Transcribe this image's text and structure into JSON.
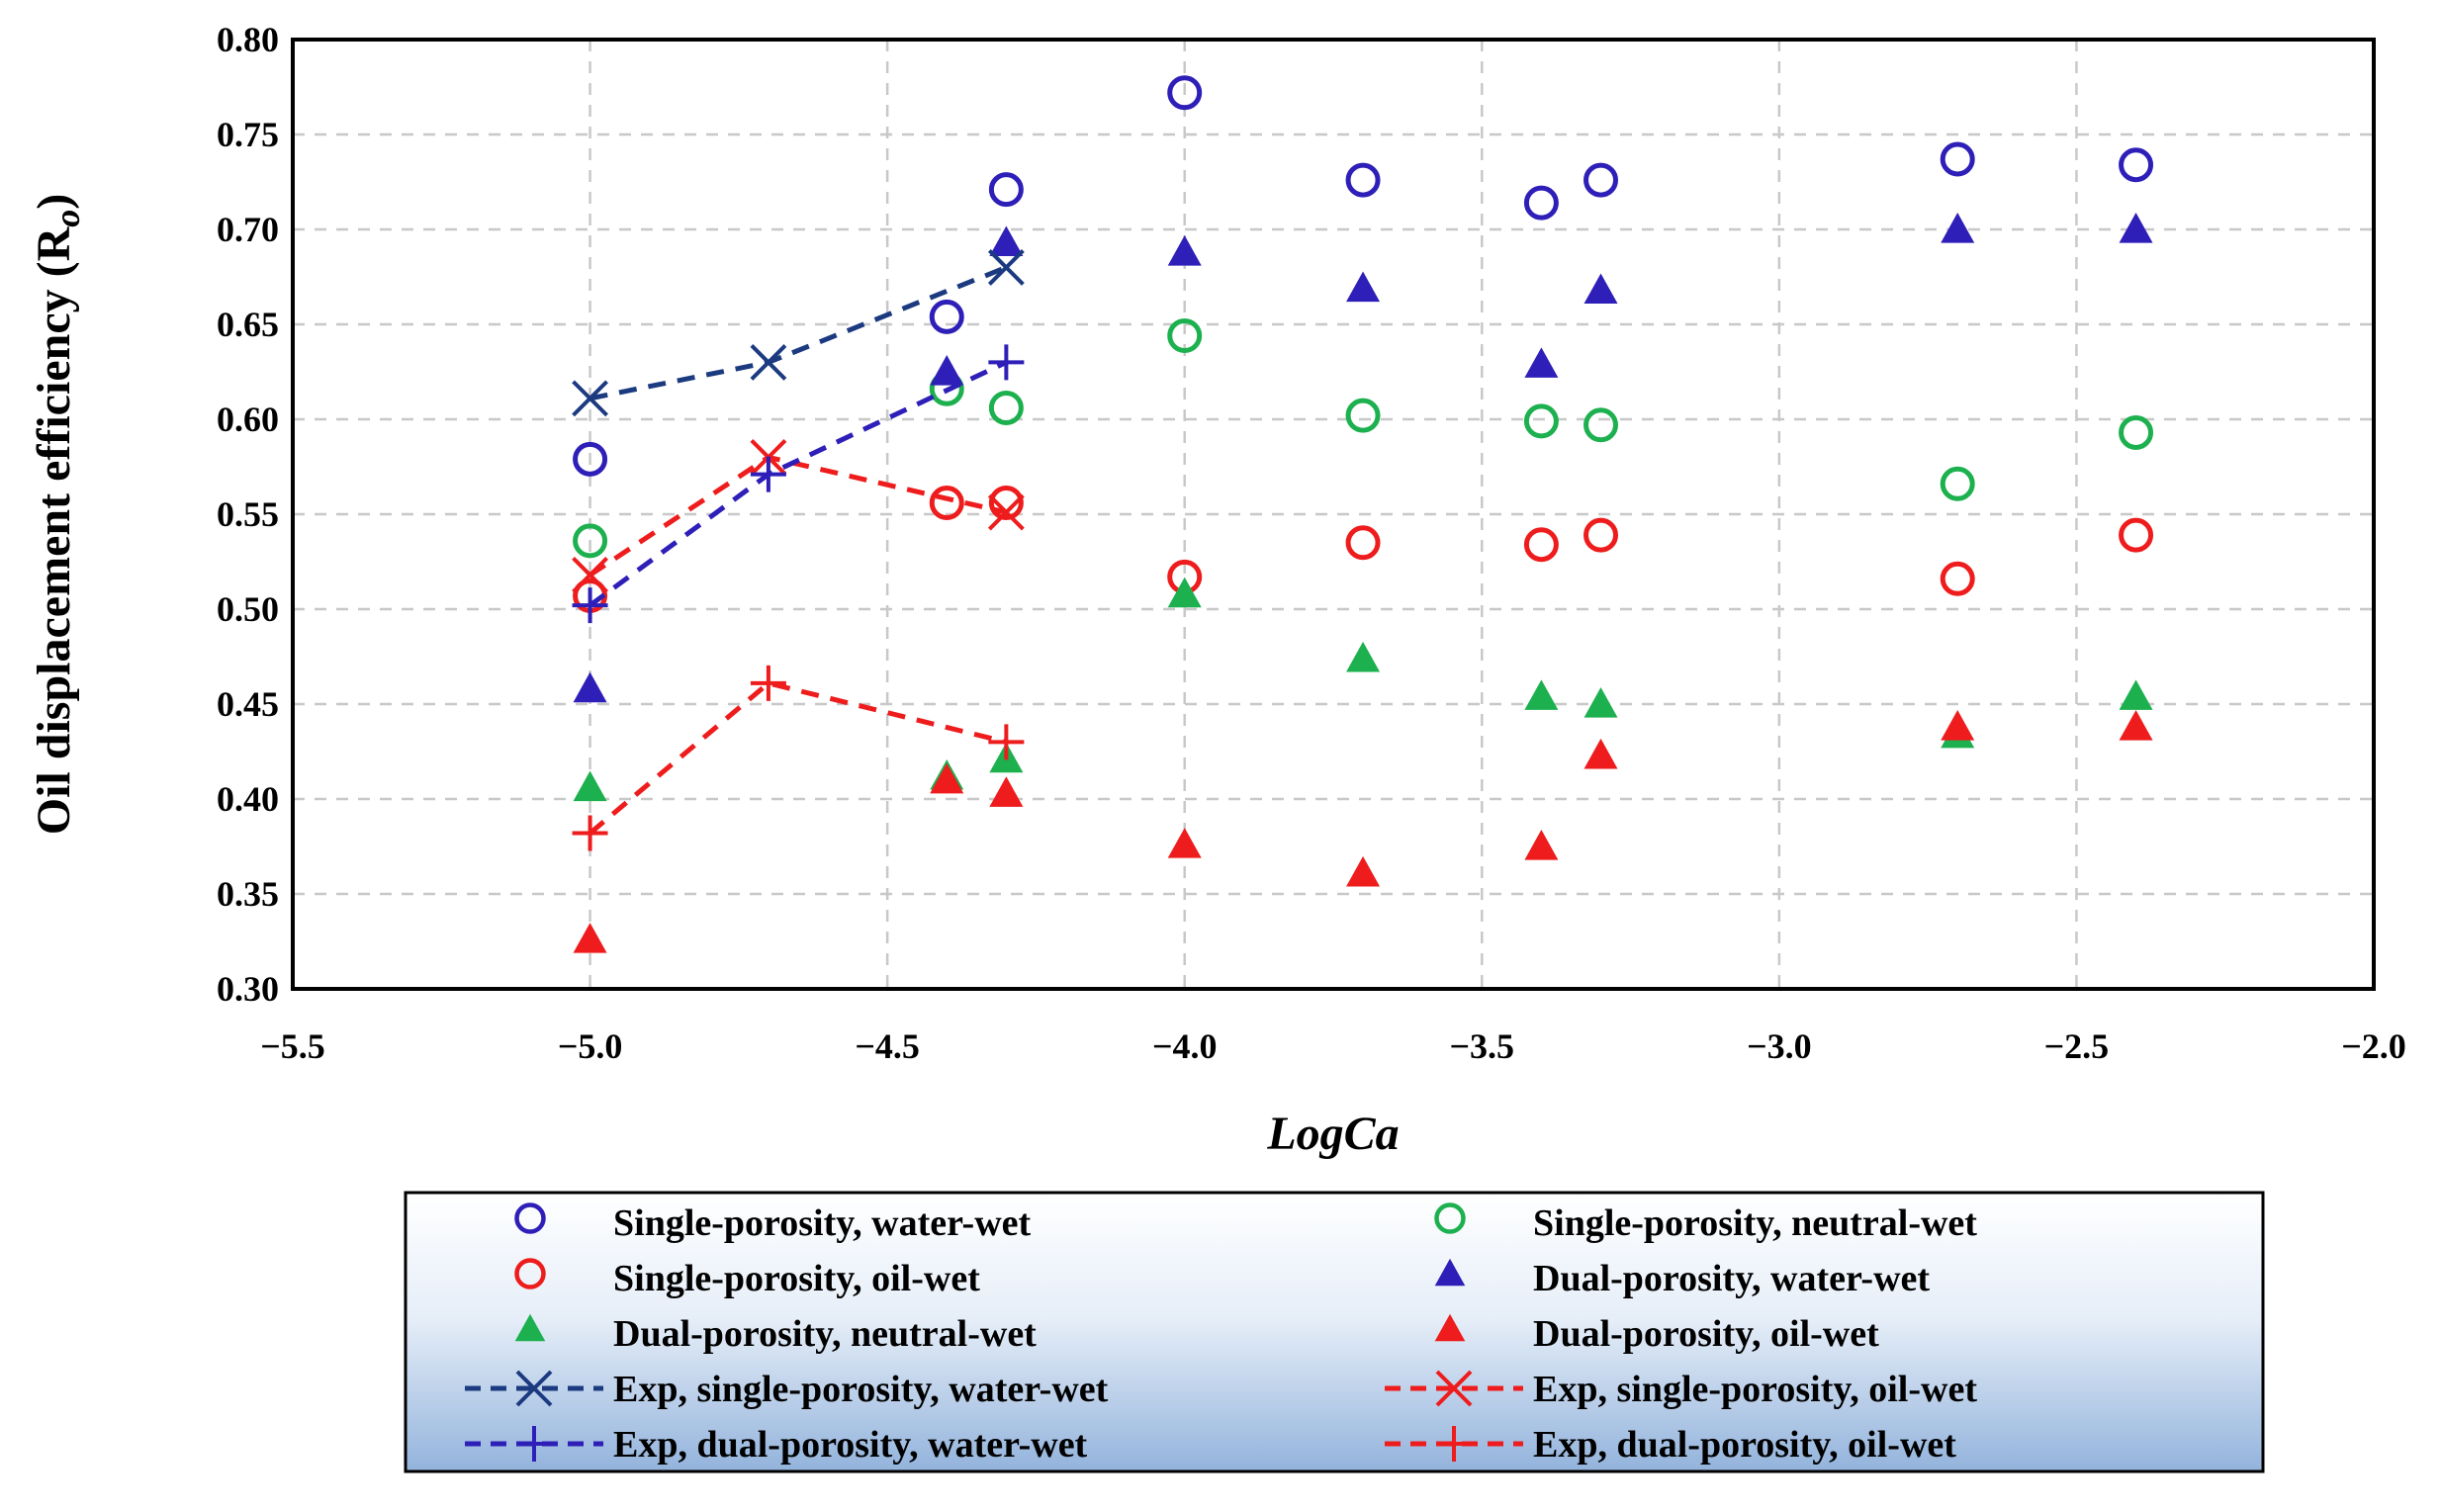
{
  "chart_data": {
    "type": "scatter",
    "title": "",
    "xlabel": "LogCa",
    "ylabel": "Oil displacement efficiency (R",
    "ylabel_subscript": "o",
    "ylabel_close": ")",
    "xlim": [
      -5.5,
      -2.0
    ],
    "ylim": [
      0.3,
      0.8
    ],
    "x_ticks": [
      -5.5,
      -5.0,
      -4.5,
      -4.0,
      -3.5,
      -3.0,
      -2.5,
      -2.0
    ],
    "x_tick_labels": [
      "−5.5",
      "−5.0",
      "−4.5",
      "−4.0",
      "−3.5",
      "−3.0",
      "−2.5",
      "−2.0"
    ],
    "y_ticks": [
      0.3,
      0.35,
      0.4,
      0.45,
      0.5,
      0.55,
      0.6,
      0.65,
      0.7,
      0.75,
      0.8
    ],
    "y_tick_labels": [
      "0.30",
      "0.35",
      "0.40",
      "0.45",
      "0.50",
      "0.55",
      "0.60",
      "0.65",
      "0.70",
      "0.75",
      "0.80"
    ],
    "grid": true,
    "legend_position": "bottom",
    "series": [
      {
        "name": "Single-porosity, water-wet",
        "marker": "circle",
        "color": "#2E1FB8",
        "line": false,
        "x": [
          -5.0,
          -4.4,
          -4.3,
          -4.0,
          -3.7,
          -3.4,
          -3.3,
          -2.7,
          -2.4
        ],
        "y": [
          0.579,
          0.654,
          0.721,
          0.772,
          0.726,
          0.714,
          0.726,
          0.737,
          0.734
        ]
      },
      {
        "name": "Single-porosity, neutral-wet",
        "marker": "circle",
        "color": "#1DB04F",
        "line": false,
        "x": [
          -5.0,
          -4.4,
          -4.3,
          -4.0,
          -3.7,
          -3.4,
          -3.3,
          -2.7,
          -2.4
        ],
        "y": [
          0.536,
          0.616,
          0.606,
          0.644,
          0.602,
          0.599,
          0.597,
          0.566,
          0.593
        ]
      },
      {
        "name": "Single-porosity, oil-wet",
        "marker": "circle",
        "color": "#EE1C1C",
        "line": false,
        "x": [
          -5.0,
          -4.4,
          -4.3,
          -4.0,
          -3.7,
          -3.4,
          -3.3,
          -2.7,
          -2.4
        ],
        "y": [
          0.507,
          0.556,
          0.556,
          0.517,
          0.535,
          0.534,
          0.539,
          0.516,
          0.539
        ]
      },
      {
        "name": "Dual-porosity, water-wet",
        "marker": "triangle",
        "color": "#2E1FB8",
        "line": false,
        "x": [
          -5.0,
          -4.4,
          -4.3,
          -4.0,
          -3.7,
          -3.4,
          -3.3,
          -2.7,
          -2.4
        ],
        "y": [
          0.458,
          0.625,
          0.693,
          0.688,
          0.669,
          0.629,
          0.668,
          0.7,
          0.7
        ]
      },
      {
        "name": "Dual-porosity, neutral-wet",
        "marker": "triangle",
        "color": "#1DB04F",
        "line": false,
        "x": [
          -5.0,
          -4.4,
          -4.3,
          -4.0,
          -3.7,
          -3.4,
          -3.3,
          -2.7,
          -2.4
        ],
        "y": [
          0.406,
          0.412,
          0.421,
          0.508,
          0.474,
          0.454,
          0.45,
          0.434,
          0.454
        ]
      },
      {
        "name": "Dual-porosity, oil-wet",
        "marker": "triangle",
        "color": "#EE1C1C",
        "line": false,
        "x": [
          -5.0,
          -4.4,
          -4.3,
          -4.0,
          -3.7,
          -3.4,
          -3.3,
          -2.7,
          -2.4
        ],
        "y": [
          0.326,
          0.41,
          0.403,
          0.376,
          0.361,
          0.375,
          0.423,
          0.438,
          0.438
        ]
      },
      {
        "name": "Exp, single-porosity, water-wet",
        "marker": "x",
        "color": "#1B3A80",
        "line": true,
        "x": [
          -5.0,
          -4.7,
          -4.3
        ],
        "y": [
          0.611,
          0.63,
          0.68
        ]
      },
      {
        "name": "Exp, single-porosity, oil-wet",
        "marker": "x",
        "color": "#EE1C1C",
        "line": true,
        "x": [
          -5.0,
          -4.7,
          -4.3
        ],
        "y": [
          0.518,
          0.58,
          0.551
        ]
      },
      {
        "name": "Exp, dual-porosity, water-wet",
        "marker": "plus",
        "color": "#2E1FB8",
        "line": true,
        "x": [
          -5.0,
          -4.7,
          -4.3
        ],
        "y": [
          0.502,
          0.571,
          0.63
        ]
      },
      {
        "name": "Exp, dual-porosity, oil-wet",
        "marker": "plus",
        "color": "#EE1C1C",
        "line": true,
        "x": [
          -5.0,
          -4.7,
          -4.3
        ],
        "y": [
          0.382,
          0.461,
          0.43
        ]
      }
    ],
    "legend_order": [
      0,
      1,
      2,
      3,
      4,
      5,
      6,
      7,
      8,
      9
    ]
  }
}
